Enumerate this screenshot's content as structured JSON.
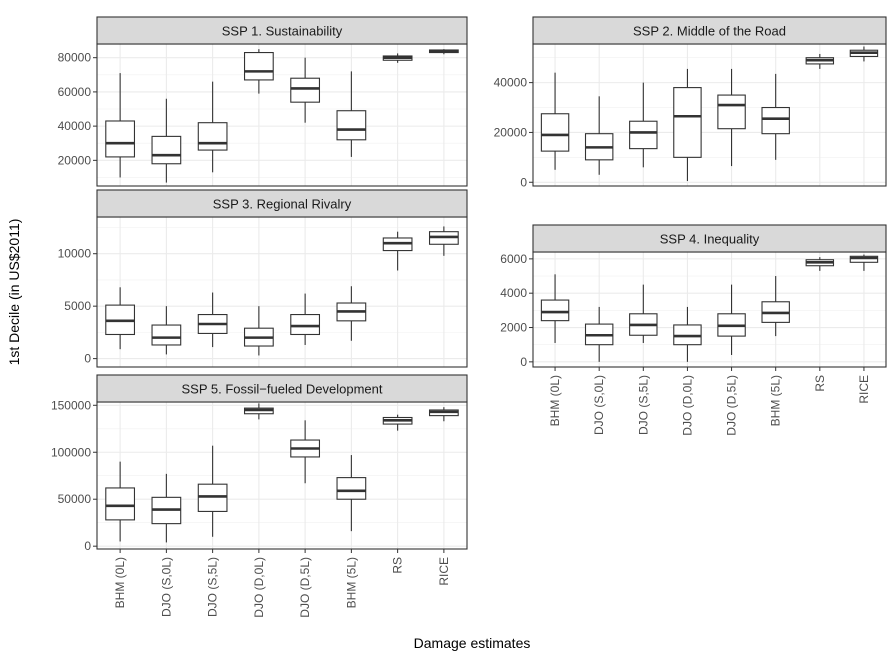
{
  "chart_data": {
    "type": "boxplot",
    "xlabel": "Damage estimates",
    "ylabel": "1st Decile (in US$2011)",
    "categories": [
      "BHM (0L)",
      "DJO (S,0L)",
      "DJO (S,5L)",
      "DJO (D,0L)",
      "DJO (D,5L)",
      "BHM (5L)",
      "RS",
      "RICE"
    ],
    "grid": true,
    "panels": [
      {
        "title": "SSP 1. Sustainability",
        "ylim": [
          5000,
          88000
        ],
        "yticks": [
          20000,
          40000,
          60000,
          80000
        ],
        "yticklabels": [
          "20000",
          "40000",
          "60000",
          "80000"
        ],
        "boxes": [
          {
            "min": 10000,
            "q1": 22000,
            "median": 30000,
            "q3": 43000,
            "max": 71000
          },
          {
            "min": 7000,
            "q1": 18000,
            "median": 23000,
            "q3": 34000,
            "max": 56000
          },
          {
            "min": 13000,
            "q1": 26000,
            "median": 30000,
            "q3": 42000,
            "max": 66000
          },
          {
            "min": 59000,
            "q1": 67000,
            "median": 72000,
            "q3": 83000,
            "max": 85000
          },
          {
            "min": 42000,
            "q1": 54000,
            "median": 62000,
            "q3": 68000,
            "max": 80000
          },
          {
            "min": 22000,
            "q1": 32000,
            "median": 38000,
            "q3": 49000,
            "max": 72000
          },
          {
            "min": 77000,
            "q1": 78500,
            "median": 80000,
            "q3": 81000,
            "max": 82500
          },
          {
            "min": 82000,
            "q1": 83000,
            "median": 84000,
            "q3": 84500,
            "max": 85000
          }
        ]
      },
      {
        "title": "SSP 2. Middle of the Road",
        "ylim": [
          -1500,
          55500
        ],
        "yticks": [
          0,
          20000,
          40000
        ],
        "yticklabels": [
          "0",
          "20000",
          "40000"
        ],
        "boxes": [
          {
            "min": 5000,
            "q1": 12500,
            "median": 19000,
            "q3": 27500,
            "max": 44000
          },
          {
            "min": 3000,
            "q1": 9000,
            "median": 14000,
            "q3": 19500,
            "max": 34500
          },
          {
            "min": 6000,
            "q1": 13500,
            "median": 20000,
            "q3": 24500,
            "max": 40000
          },
          {
            "min": 500,
            "q1": 10000,
            "median": 26500,
            "q3": 38000,
            "max": 45500
          },
          {
            "min": 6500,
            "q1": 21500,
            "median": 31000,
            "q3": 35000,
            "max": 45500
          },
          {
            "min": 9000,
            "q1": 19500,
            "median": 25500,
            "q3": 30000,
            "max": 43500
          },
          {
            "min": 45500,
            "q1": 47500,
            "median": 49000,
            "q3": 50000,
            "max": 51500
          },
          {
            "min": 48500,
            "q1": 50500,
            "median": 52000,
            "q3": 53000,
            "max": 54500
          }
        ]
      },
      {
        "title": "SSP 3. Regional Rivalry",
        "ylim": [
          -800,
          13500
        ],
        "yticks": [
          0,
          5000,
          10000
        ],
        "yticklabels": [
          "0",
          "5000",
          "10000"
        ],
        "boxes": [
          {
            "min": 900,
            "q1": 2300,
            "median": 3600,
            "q3": 5100,
            "max": 6800
          },
          {
            "min": 400,
            "q1": 1300,
            "median": 2000,
            "q3": 3200,
            "max": 5000
          },
          {
            "min": 1100,
            "q1": 2400,
            "median": 3300,
            "q3": 4200,
            "max": 6300
          },
          {
            "min": 300,
            "q1": 1200,
            "median": 2000,
            "q3": 2900,
            "max": 5000
          },
          {
            "min": 1300,
            "q1": 2300,
            "median": 3100,
            "q3": 4200,
            "max": 6200
          },
          {
            "min": 1700,
            "q1": 3600,
            "median": 4500,
            "q3": 5300,
            "max": 6900
          },
          {
            "min": 8400,
            "q1": 10300,
            "median": 11000,
            "q3": 11500,
            "max": 12100
          },
          {
            "min": 9800,
            "q1": 10900,
            "median": 11600,
            "q3": 12100,
            "max": 12600
          }
        ]
      },
      {
        "title": "SSP 4. Inequality",
        "ylim": [
          -300,
          6400
        ],
        "yticks": [
          0,
          2000,
          4000,
          6000
        ],
        "yticklabels": [
          "0",
          "2000",
          "4000",
          "6000"
        ],
        "boxes": [
          {
            "min": 1100,
            "q1": 2400,
            "median": 2900,
            "q3": 3600,
            "max": 5100
          },
          {
            "min": 0,
            "q1": 1000,
            "median": 1550,
            "q3": 2200,
            "max": 3200
          },
          {
            "min": 1100,
            "q1": 1550,
            "median": 2150,
            "q3": 2800,
            "max": 4500
          },
          {
            "min": 0,
            "q1": 1000,
            "median": 1500,
            "q3": 2150,
            "max": 3200
          },
          {
            "min": 400,
            "q1": 1500,
            "median": 2100,
            "q3": 2800,
            "max": 4500
          },
          {
            "min": 1500,
            "q1": 2300,
            "median": 2850,
            "q3": 3500,
            "max": 5000
          },
          {
            "min": 5300,
            "q1": 5600,
            "median": 5800,
            "q3": 5950,
            "max": 6100
          },
          {
            "min": 5300,
            "q1": 5800,
            "median": 6050,
            "q3": 6150,
            "max": 6250
          }
        ]
      },
      {
        "title": "SSP 5. Fossil−fueled Development",
        "ylim": [
          -3000,
          153500
        ],
        "yticks": [
          0,
          50000,
          100000,
          150000
        ],
        "yticklabels": [
          "0",
          "50000",
          "100000",
          "150000"
        ],
        "boxes": [
          {
            "min": 5000,
            "q1": 28000,
            "median": 43000,
            "q3": 62000,
            "max": 90000
          },
          {
            "min": 4000,
            "q1": 24000,
            "median": 39000,
            "q3": 52000,
            "max": 77000
          },
          {
            "min": 10000,
            "q1": 37000,
            "median": 53000,
            "q3": 66000,
            "max": 107000
          },
          {
            "min": 135000,
            "q1": 141000,
            "median": 145000,
            "q3": 147000,
            "max": 152000
          },
          {
            "min": 67000,
            "q1": 95000,
            "median": 104000,
            "q3": 113000,
            "max": 134000
          },
          {
            "min": 16000,
            "q1": 50000,
            "median": 59000,
            "q3": 73000,
            "max": 97000
          },
          {
            "min": 123000,
            "q1": 130000,
            "median": 134000,
            "q3": 137000,
            "max": 140000
          },
          {
            "min": 133000,
            "q1": 139000,
            "median": 143000,
            "q3": 145000,
            "max": 148000
          }
        ]
      }
    ]
  }
}
